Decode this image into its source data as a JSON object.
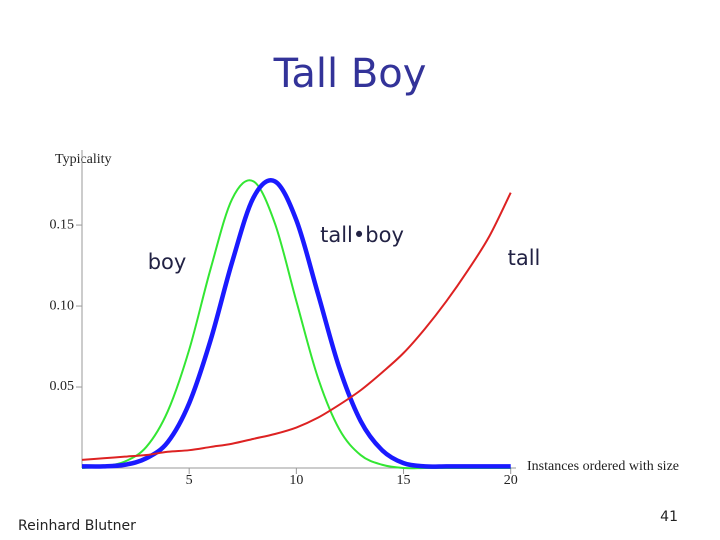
{
  "slide": {
    "footer": "Reinhard Blutner",
    "page_number": "41"
  },
  "chart_data": {
    "type": "line",
    "title": "Tall Boy",
    "y_label": "Typicality",
    "x_label": "Instances ordered with size",
    "x": [
      0,
      1,
      2,
      3,
      4,
      5,
      6,
      7,
      8,
      9,
      10,
      11,
      12,
      13,
      14,
      15,
      16,
      17,
      18,
      19,
      20
    ],
    "series": [
      {
        "name": "boy",
        "color": "#33e633",
        "values": [
          0.0,
          0.001,
          0.004,
          0.013,
          0.035,
          0.073,
          0.123,
          0.166,
          0.177,
          0.151,
          0.103,
          0.056,
          0.024,
          0.008,
          0.002,
          0.0,
          0.0,
          0.0,
          0.0,
          0.0,
          0.0
        ]
      },
      {
        "name": "tall•boy",
        "color": "#1a1aff",
        "values": [
          0.001,
          0.001,
          0.002,
          0.006,
          0.016,
          0.04,
          0.079,
          0.127,
          0.167,
          0.177,
          0.153,
          0.108,
          0.062,
          0.029,
          0.011,
          0.003,
          0.001,
          0.001,
          0.001,
          0.001,
          0.001
        ]
      },
      {
        "name": "tall",
        "color": "#dd2222",
        "values": [
          0.005,
          0.006,
          0.007,
          0.008,
          0.01,
          0.011,
          0.013,
          0.015,
          0.018,
          0.021,
          0.025,
          0.031,
          0.039,
          0.048,
          0.059,
          0.071,
          0.086,
          0.103,
          0.122,
          0.143,
          0.17
        ]
      }
    ],
    "xlim": [
      0,
      20.2
    ],
    "ylim": [
      0,
      0.184
    ],
    "xticks": [
      5,
      10,
      15,
      20
    ],
    "yticks": [
      0.05,
      {
        "value": 0.1,
        "label": "0.10"
      },
      0.15
    ]
  }
}
